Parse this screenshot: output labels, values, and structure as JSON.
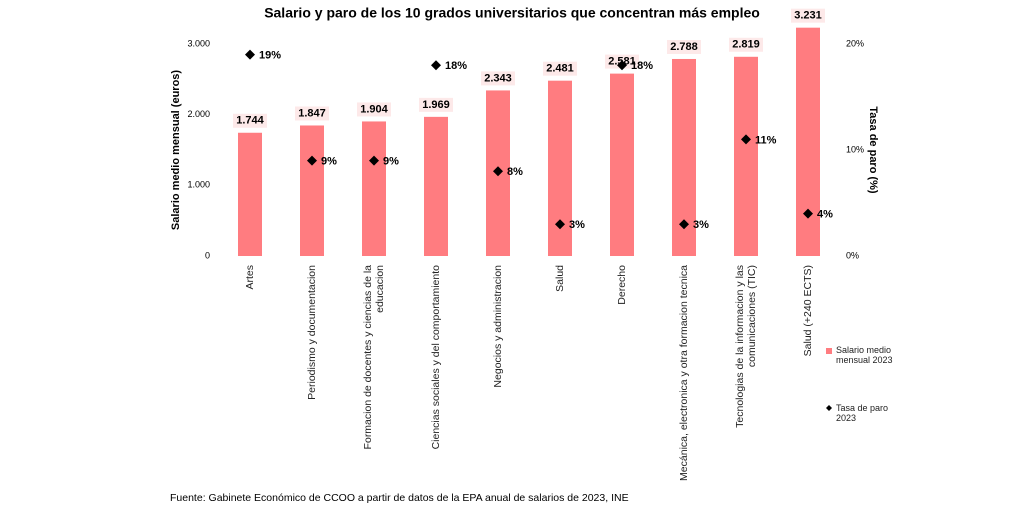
{
  "chart_data": {
    "type": "bar",
    "title": "Salario y paro de los 10 grados universitarios que concentran más empleo",
    "categories": [
      "Artes",
      "Periodismo y documentacion",
      "Formacion de docentes y ciencias de la educacion",
      "Ciencias sociales y del comportamiento",
      "Negocios y administracion",
      "Salud",
      "Derecho",
      "Mecánica, electronica y otra formacion tecnica",
      "Tecnologias de la informacion y las comunicaciones (TIC)",
      "Salud (+240 ECTS)"
    ],
    "series": [
      {
        "name": "Salario medio mensual 2023",
        "color": "#ff7c80",
        "type": "bar",
        "values": [
          1744,
          1847,
          1904,
          1969,
          2343,
          2481,
          2581,
          2788,
          2819,
          3231
        ],
        "value_labels": [
          "1.744",
          "1.847",
          "1.904",
          "1.969",
          "2.343",
          "2.481",
          "2.581",
          "2.788",
          "2.819",
          "3.231"
        ]
      },
      {
        "name": "Tasa de paro 2023",
        "color": "#000000",
        "type": "scatter",
        "axis": "y2",
        "values": [
          19,
          9,
          9,
          18,
          8,
          3,
          18,
          3,
          11,
          4
        ],
        "value_labels": [
          "19%",
          "9%",
          "9%",
          "18%",
          "8%",
          "3%",
          "18%",
          "3%",
          "11%",
          "4%"
        ]
      }
    ],
    "ylabel": "Salario medio mensual (euros)",
    "y2label": "Tasa de paro (%)",
    "ylim": [
      0,
      3000
    ],
    "yticks": [
      0,
      {
        "value": 1000,
        "label": "1.000"
      },
      {
        "value": 2000,
        "label": "2.000"
      },
      {
        "value": 3000,
        "label": "3.000"
      }
    ],
    "y2lim": [
      0,
      20
    ],
    "y2ticks": [
      {
        "value": 0,
        "label": "0%"
      },
      {
        "value": 10,
        "label": "10%"
      },
      {
        "value": 20,
        "label": "20%"
      }
    ],
    "legend": "right",
    "source": "Fuente: Gabinete Económico de CCOO a partir de datos de la EPA anual de salarios de 2023, INE"
  }
}
